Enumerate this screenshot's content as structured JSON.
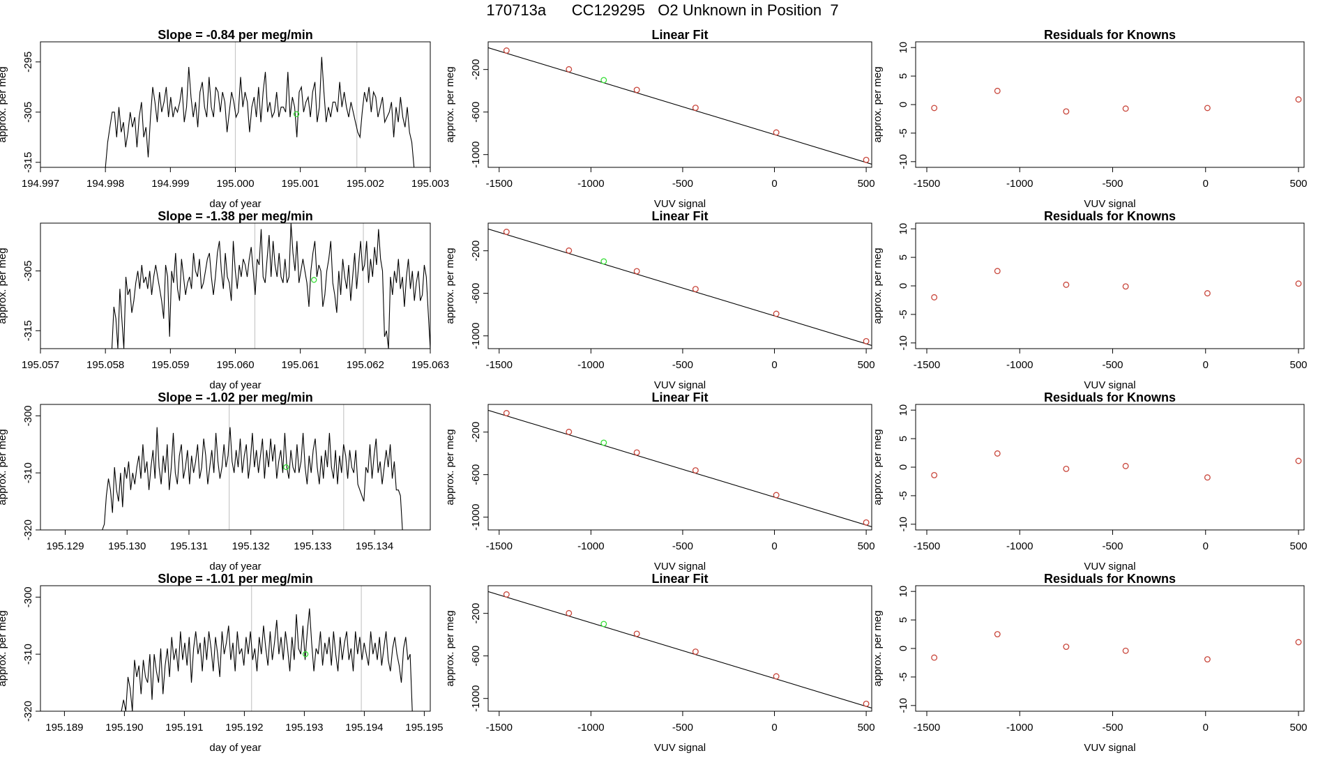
{
  "page": {
    "title_parts": [
      "170713a",
      "CC129295",
      "O2 Unknown in Position  7"
    ]
  },
  "colors": {
    "line": "#000000",
    "known_points": "#c8453a",
    "unknown_point": "#33dd33",
    "vertical_lines": "#c8c8c8"
  },
  "chart_data": [
    {
      "type": "line",
      "panel": "timeseries",
      "title": "Slope =  -0.84  per meg/min",
      "xlabel": "day of year",
      "ylabel": "approx. per meg",
      "xlim": [
        194.997,
        195.003
      ],
      "xticks": [
        "194.997",
        "194.998",
        "194.999",
        "195.000",
        "195.001",
        "195.002",
        "195.003"
      ],
      "ylim": [
        -316,
        -291
      ],
      "yticks": [
        "-295",
        "-305",
        "-315"
      ],
      "vlines": [
        195.0,
        195.00187
      ],
      "series": {
        "x_start": 194.998,
        "x_end": 195.00275,
        "values": [
          -316,
          -311,
          -308,
          -305,
          -305,
          -310,
          -304,
          -309,
          -307,
          -312,
          -309,
          -305,
          -308,
          -306,
          -312,
          -306,
          -303,
          -310,
          -308,
          -314,
          -306,
          -300,
          -303,
          -307,
          -301,
          -305,
          -303,
          -300,
          -306,
          -302,
          -306,
          -304,
          -305,
          -303,
          -300,
          -307,
          -304,
          -296,
          -302,
          -306,
          -303,
          -308,
          -301,
          -299,
          -304,
          -306,
          -298,
          -304,
          -306,
          -300,
          -301,
          -305,
          -301,
          -303,
          -309,
          -305,
          -301,
          -303,
          -306,
          -305,
          -298,
          -304,
          -301,
          -303,
          -309,
          -304,
          -302,
          -306,
          -300,
          -307,
          -301,
          -297,
          -305,
          -303,
          -306,
          -305,
          -301,
          -306,
          -304,
          -304,
          -305,
          -297,
          -306,
          -302,
          -304,
          -310,
          -301,
          -300,
          -305,
          -303,
          -302,
          -306,
          -301,
          -299,
          -307,
          -304,
          -294,
          -301,
          -307,
          -304,
          -306,
          -303,
          -303,
          -305,
          -299,
          -304,
          -301,
          -304,
          -306,
          -303,
          -305,
          -307,
          -309,
          -310,
          -305,
          -301,
          -303,
          -300,
          -305,
          -301,
          -302,
          -306,
          -304,
          -302,
          -307,
          -306,
          -305,
          -303,
          -310,
          -304,
          -307,
          -302,
          -306,
          -308,
          -304,
          -309,
          -311,
          -316
        ]
      },
      "unknown_point": {
        "x": 195.00094,
        "y": -305.4
      }
    },
    {
      "type": "scatter",
      "panel": "linear_fit",
      "title": "Linear Fit",
      "xlabel": "VUV signal",
      "ylabel": "approx. per meg",
      "xlim": [
        -1560,
        530
      ],
      "xticks": [
        "-1500",
        "-1000",
        "-500",
        "0",
        "500"
      ],
      "ylim": [
        -1120,
        60
      ],
      "yticks": [
        "-200",
        "-600",
        "-1000"
      ],
      "fit_line": {
        "x": [
          -1560,
          530
        ],
        "y": [
          5,
          -1090
        ]
      },
      "knowns": {
        "x": [
          -1460,
          -1120,
          -750,
          -430,
          10,
          500
        ],
        "y": [
          -22,
          -198,
          -392,
          -560,
          -792,
          -1050
        ]
      },
      "unknown_point": {
        "x": -930,
        "y": -300
      }
    },
    {
      "type": "scatter",
      "panel": "residuals",
      "title": "Residuals for Knowns",
      "xlabel": "VUV signal",
      "ylabel": "approx. per meg",
      "xlim": [
        -1560,
        530
      ],
      "xticks": [
        "-1500",
        "-1000",
        "-500",
        "0",
        "500"
      ],
      "ylim": [
        -11,
        11
      ],
      "yticks": [
        "-10",
        "-5",
        "0",
        "5",
        "10"
      ],
      "residuals": {
        "x": [
          -1460,
          -1120,
          -750,
          -430,
          10,
          500
        ],
        "y": [
          -0.6,
          2.4,
          -1.2,
          -0.7,
          -0.6,
          0.9
        ]
      }
    },
    {
      "type": "line",
      "panel": "timeseries",
      "title": "Slope =  -1.38  per meg/min",
      "xlabel": "day of year",
      "ylabel": "approx. per meg",
      "xlim": [
        195.057,
        195.063
      ],
      "xticks": [
        "195.057",
        "195.058",
        "195.059",
        "195.060",
        "195.061",
        "195.062",
        "195.063"
      ],
      "ylim": [
        -318,
        -297
      ],
      "yticks": [
        "-305",
        "-315"
      ],
      "vlines": [
        195.0603,
        195.06197
      ],
      "series": {
        "x_start": 195.0581,
        "x_end": 195.063,
        "values": [
          -318,
          -311,
          -313,
          -318,
          -308,
          -313,
          -318,
          -306,
          -309,
          -308,
          -312,
          -310,
          -307,
          -305,
          -308,
          -304,
          -307,
          -306,
          -308,
          -305,
          -309,
          -306,
          -304,
          -306,
          -308,
          -310,
          -313,
          -304,
          -306,
          -316,
          -305,
          -307,
          -302,
          -308,
          -310,
          -303,
          -306,
          -309,
          -307,
          -306,
          -308,
          -302,
          -305,
          -306,
          -303,
          -308,
          -307,
          -305,
          -303,
          -302,
          -306,
          -309,
          -306,
          -302,
          -300,
          -305,
          -308,
          -302,
          -306,
          -307,
          -310,
          -300,
          -305,
          -308,
          -304,
          -306,
          -303,
          -304,
          -306,
          -303,
          -301,
          -305,
          -309,
          -303,
          -304,
          -298,
          -306,
          -307,
          -303,
          -299,
          -306,
          -300,
          -304,
          -306,
          -302,
          -306,
          -307,
          -303,
          -307,
          -306,
          -297,
          -302,
          -305,
          -300,
          -307,
          -305,
          -303,
          -305,
          -307,
          -311,
          -305,
          -302,
          -300,
          -306,
          -304,
          -305,
          -311,
          -309,
          -305,
          -303,
          -300,
          -307,
          -309,
          -312,
          -305,
          -309,
          -303,
          -306,
          -308,
          -304,
          -310,
          -306,
          -302,
          -308,
          -304,
          -300,
          -305,
          -304,
          -300,
          -307,
          -303,
          -306,
          -301,
          -304,
          -298,
          -303,
          -305,
          -316,
          -315,
          -318,
          -306,
          -309,
          -305,
          -307,
          -303,
          -308,
          -306,
          -311,
          -306,
          -303,
          -308,
          -305,
          -310,
          -307,
          -305,
          -310,
          -309,
          -304,
          -306,
          -312,
          -318
        ]
      },
      "unknown_point": {
        "x": 195.06121,
        "y": -306.5
      }
    },
    {
      "type": "scatter",
      "panel": "linear_fit",
      "title": "Linear Fit",
      "xlabel": "VUV signal",
      "ylabel": "approx. per meg",
      "xlim": [
        -1560,
        530
      ],
      "xticks": [
        "-1500",
        "-1000",
        "-500",
        "0",
        "500"
      ],
      "ylim": [
        -1120,
        60
      ],
      "yticks": [
        "-200",
        "-600",
        "-1000"
      ],
      "fit_line": {
        "x": [
          -1560,
          530
        ],
        "y": [
          5,
          -1090
        ]
      },
      "knowns": {
        "x": [
          -1460,
          -1120,
          -750,
          -430,
          10,
          500
        ],
        "y": [
          -22,
          -198,
          -392,
          -560,
          -792,
          -1050
        ]
      },
      "unknown_point": {
        "x": -930,
        "y": -300
      }
    },
    {
      "type": "scatter",
      "panel": "residuals",
      "title": "Residuals for Knowns",
      "xlabel": "VUV signal",
      "ylabel": "approx. per meg",
      "xlim": [
        -1560,
        530
      ],
      "xticks": [
        "-1500",
        "-1000",
        "-500",
        "0",
        "500"
      ],
      "ylim": [
        -11,
        11
      ],
      "yticks": [
        "-10",
        "-5",
        "0",
        "5",
        "10"
      ],
      "residuals": {
        "x": [
          -1460,
          -1120,
          -750,
          -430,
          10,
          500
        ],
        "y": [
          -2.0,
          2.6,
          0.2,
          -0.1,
          -1.3,
          0.4
        ]
      }
    },
    {
      "type": "line",
      "panel": "timeseries",
      "title": "Slope =  -1.02  per meg/min",
      "xlabel": "day of year",
      "ylabel": "approx. per meg",
      "xlim": [
        195.1286,
        195.1349
      ],
      "xticks": [
        "195.129",
        "195.130",
        "195.131",
        "195.132",
        "195.133",
        "195.134"
      ],
      "ylim": [
        -320,
        -298
      ],
      "yticks": [
        "-300",
        "-310",
        "-320"
      ],
      "vlines": [
        195.13165,
        195.1335
      ],
      "series": {
        "x_start": 195.1296,
        "x_end": 195.13445,
        "values": [
          -320,
          -319,
          -314,
          -311,
          -313,
          -317,
          -309,
          -313,
          -315,
          -310,
          -316,
          -309,
          -311,
          -308,
          -313,
          -310,
          -312,
          -309,
          -307,
          -311,
          -305,
          -310,
          -308,
          -313,
          -309,
          -306,
          -311,
          -302,
          -309,
          -312,
          -307,
          -310,
          -305,
          -313,
          -309,
          -303,
          -310,
          -312,
          -307,
          -305,
          -311,
          -309,
          -306,
          -312,
          -307,
          -310,
          -308,
          -305,
          -311,
          -309,
          -304,
          -307,
          -312,
          -309,
          -306,
          -310,
          -303,
          -308,
          -311,
          -309,
          -305,
          -309,
          -307,
          -302,
          -308,
          -310,
          -306,
          -309,
          -304,
          -310,
          -307,
          -305,
          -311,
          -308,
          -303,
          -309,
          -306,
          -310,
          -307,
          -304,
          -311,
          -306,
          -309,
          -304,
          -308,
          -305,
          -311,
          -308,
          -306,
          -310,
          -303,
          -309,
          -311,
          -306,
          -309,
          -310,
          -305,
          -310,
          -308,
          -303,
          -309,
          -312,
          -307,
          -310,
          -306,
          -304,
          -309,
          -312,
          -307,
          -311,
          -306,
          -309,
          -303,
          -309,
          -311,
          -306,
          -312,
          -307,
          -310,
          -305,
          -307,
          -311,
          -306,
          -309,
          -310,
          -306,
          -312,
          -313,
          -314,
          -315,
          -309,
          -310,
          -305,
          -311,
          -307,
          -304,
          -310,
          -308,
          -312,
          -309,
          -306,
          -309,
          -305,
          -311,
          -308,
          -313,
          -313,
          -314,
          -320
        ]
      },
      "unknown_point": {
        "x": 195.13257,
        "y": -309.0
      }
    },
    {
      "type": "scatter",
      "panel": "linear_fit",
      "title": "Linear Fit",
      "xlabel": "VUV signal",
      "ylabel": "approx. per meg",
      "xlim": [
        -1560,
        530
      ],
      "xticks": [
        "-1500",
        "-1000",
        "-500",
        "0",
        "500"
      ],
      "ylim": [
        -1120,
        60
      ],
      "yticks": [
        "-200",
        "-600",
        "-1000"
      ],
      "fit_line": {
        "x": [
          -1560,
          530
        ],
        "y": [
          5,
          -1090
        ]
      },
      "knowns": {
        "x": [
          -1460,
          -1120,
          -750,
          -430,
          10,
          500
        ],
        "y": [
          -22,
          -198,
          -392,
          -560,
          -792,
          -1050
        ]
      },
      "unknown_point": {
        "x": -930,
        "y": -300
      }
    },
    {
      "type": "scatter",
      "panel": "residuals",
      "title": "Residuals for Knowns",
      "xlabel": "VUV signal",
      "ylabel": "approx. per meg",
      "xlim": [
        -1560,
        530
      ],
      "xticks": [
        "-1500",
        "-1000",
        "-500",
        "0",
        "500"
      ],
      "ylim": [
        -11,
        11
      ],
      "yticks": [
        "-10",
        "-5",
        "0",
        "5",
        "10"
      ],
      "residuals": {
        "x": [
          -1460,
          -1120,
          -750,
          -430,
          10,
          500
        ],
        "y": [
          -1.4,
          2.4,
          -0.3,
          0.2,
          -1.8,
          1.1
        ]
      }
    },
    {
      "type": "line",
      "panel": "timeseries",
      "title": "Slope =  -1.01  per meg/min",
      "xlabel": "day of year",
      "ylabel": "approx. per meg",
      "xlim": [
        195.1886,
        195.1951
      ],
      "xticks": [
        "195.189",
        "195.190",
        "195.191",
        "195.192",
        "195.193",
        "195.194",
        "195.195"
      ],
      "ylim": [
        -320,
        -298
      ],
      "yticks": [
        "-300",
        "-310",
        "-320"
      ],
      "vlines": [
        195.19212,
        195.19395
      ],
      "series": {
        "x_start": 195.18995,
        "x_end": 195.1948,
        "values": [
          -320,
          -318,
          -320,
          -314,
          -316,
          -320,
          -311,
          -314,
          -312,
          -317,
          -311,
          -314,
          -315,
          -310,
          -318,
          -310,
          -313,
          -315,
          -309,
          -317,
          -312,
          -309,
          -314,
          -307,
          -311,
          -309,
          -313,
          -306,
          -311,
          -308,
          -312,
          -307,
          -315,
          -309,
          -306,
          -310,
          -308,
          -313,
          -307,
          -311,
          -306,
          -309,
          -313,
          -307,
          -310,
          -314,
          -306,
          -310,
          -308,
          -305,
          -311,
          -308,
          -313,
          -306,
          -310,
          -309,
          -312,
          -307,
          -310,
          -306,
          -311,
          -309,
          -313,
          -307,
          -310,
          -305,
          -309,
          -312,
          -306,
          -311,
          -308,
          -304,
          -310,
          -307,
          -311,
          -306,
          -309,
          -313,
          -307,
          -311,
          -303,
          -309,
          -310,
          -305,
          -311,
          -306,
          -302,
          -308,
          -313,
          -309,
          -310,
          -306,
          -312,
          -308,
          -310,
          -307,
          -312,
          -306,
          -310,
          -313,
          -307,
          -311,
          -308,
          -306,
          -311,
          -309,
          -313,
          -306,
          -310,
          -307,
          -311,
          -308,
          -310,
          -312,
          -306,
          -310,
          -308,
          -311,
          -307,
          -312,
          -309,
          -306,
          -311,
          -313,
          -309,
          -307,
          -310,
          -312,
          -315,
          -309,
          -307,
          -311,
          -310,
          -320
        ]
      },
      "unknown_point": {
        "x": 195.19302,
        "y": -310.0
      }
    },
    {
      "type": "scatter",
      "panel": "linear_fit",
      "title": "Linear Fit",
      "xlabel": "VUV signal",
      "ylabel": "approx. per meg",
      "xlim": [
        -1560,
        530
      ],
      "xticks": [
        "-1500",
        "-1000",
        "-500",
        "0",
        "500"
      ],
      "ylim": [
        -1120,
        60
      ],
      "yticks": [
        "-200",
        "-600",
        "-1000"
      ],
      "fit_line": {
        "x": [
          -1560,
          530
        ],
        "y": [
          5,
          -1090
        ]
      },
      "knowns": {
        "x": [
          -1460,
          -1120,
          -750,
          -430,
          10,
          500
        ],
        "y": [
          -22,
          -198,
          -392,
          -560,
          -792,
          -1050
        ]
      },
      "unknown_point": {
        "x": -930,
        "y": -300
      }
    },
    {
      "type": "scatter",
      "panel": "residuals",
      "title": "Residuals for Knowns",
      "xlabel": "VUV signal",
      "ylabel": "approx. per meg",
      "xlim": [
        -1560,
        530
      ],
      "xticks": [
        "-1500",
        "-1000",
        "-500",
        "0",
        "500"
      ],
      "ylim": [
        -11,
        11
      ],
      "yticks": [
        "-10",
        "-5",
        "0",
        "5",
        "10"
      ],
      "residuals": {
        "x": [
          -1460,
          -1120,
          -750,
          -430,
          10,
          500
        ],
        "y": [
          -1.6,
          2.5,
          0.3,
          -0.4,
          -1.9,
          1.1
        ]
      }
    }
  ]
}
